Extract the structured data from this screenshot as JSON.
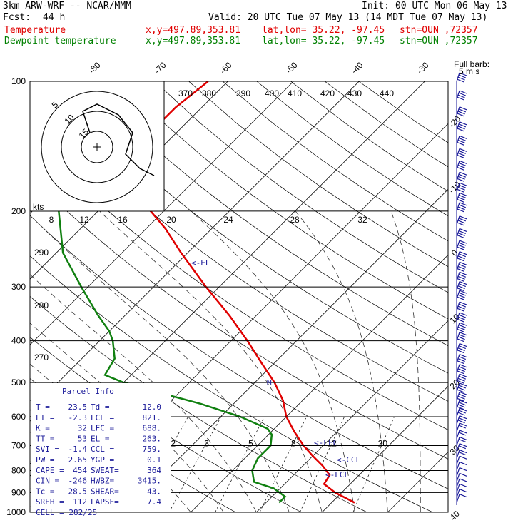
{
  "header": {
    "model": "3km ARW-WRF -- NCAR/MMM",
    "init": "Init: 00 UTC Mon 06 May 13",
    "fcst_label": "Fcst:",
    "fcst_value": "44 h",
    "valid": "Valid: 20 UTC Tue 07 May 13 (14 MDT Tue 07 May 13)",
    "temp_label": "Temperature",
    "dew_label": "Dewpoint temperature",
    "xy": "x,y=497.89,353.81",
    "latlon": "lat,lon= 35.22, -97.45",
    "stn": "stn=OUN ,72357"
  },
  "colors": {
    "temperature": "#e00000",
    "dewpoint": "#108010",
    "info": "#1a1a99",
    "grid": "#000000"
  },
  "chart_data": {
    "type": "line",
    "title": "",
    "y_axis": {
      "scale": "log",
      "ylim": [
        1000,
        100
      ],
      "ticks": [
        100,
        200,
        300,
        400,
        500,
        600,
        700,
        800,
        900,
        1000
      ]
    },
    "isotherm_labels": [
      -80,
      -70,
      -60,
      -50,
      -40,
      -30,
      -20,
      -10,
      0,
      10,
      20,
      30,
      40
    ],
    "theta_labels": [
      370,
      380,
      390,
      400,
      410,
      420,
      430,
      440
    ],
    "theta_labels_left": [
      290,
      280,
      270
    ],
    "mixing_ratio_labels": [
      "2",
      "3",
      "5",
      "8",
      "12",
      "20"
    ],
    "series": [
      {
        "name": "Temperature",
        "points": [
          [
            950,
            23.5
          ],
          [
            900,
            19
          ],
          [
            860,
            16
          ],
          [
            820,
            15.5
          ],
          [
            780,
            13
          ],
          [
            740,
            10
          ],
          [
            700,
            7
          ],
          [
            650,
            3.5
          ],
          [
            600,
            0
          ],
          [
            550,
            -3
          ],
          [
            500,
            -7
          ],
          [
            450,
            -12
          ],
          [
            400,
            -17.5
          ],
          [
            350,
            -24
          ],
          [
            300,
            -32
          ],
          [
            250,
            -41
          ],
          [
            220,
            -47
          ],
          [
            200,
            -52
          ],
          [
            170,
            -57
          ],
          [
            150,
            -61
          ],
          [
            130,
            -64
          ],
          [
            115,
            -64
          ],
          [
            100,
            -63
          ]
        ]
      },
      {
        "name": "Dewpoint temperature",
        "points": [
          [
            950,
            12
          ],
          [
            920,
            12
          ],
          [
            880,
            9
          ],
          [
            850,
            5
          ],
          [
            800,
            3
          ],
          [
            750,
            2
          ],
          [
            700,
            2
          ],
          [
            660,
            0.5
          ],
          [
            640,
            -1
          ],
          [
            600,
            -7
          ],
          [
            560,
            -15
          ],
          [
            520,
            -25
          ],
          [
            500,
            -30
          ],
          [
            480,
            -34
          ],
          [
            440,
            -35
          ],
          [
            400,
            -38
          ],
          [
            380,
            -40
          ],
          [
            350,
            -44
          ],
          [
            300,
            -51
          ],
          [
            250,
            -59
          ],
          [
            200,
            -66
          ],
          [
            170,
            -70
          ],
          [
            150,
            -72
          ],
          [
            130,
            -71
          ],
          [
            115,
            -73
          ],
          [
            100,
            -73
          ]
        ]
      }
    ],
    "markers": [
      "EL",
      "M",
      "LFC",
      "CCL",
      "LCL"
    ],
    "hodograph": {
      "speed_unit": "kts",
      "ring_labels": [
        "5",
        "10",
        "15"
      ],
      "axis_labels": [
        "8",
        "12",
        "16",
        "20",
        "24",
        "28",
        "32"
      ],
      "points": [
        [
          -1,
          2
        ],
        [
          -2,
          5
        ],
        [
          0,
          6
        ],
        [
          3,
          4.5
        ],
        [
          5,
          2
        ],
        [
          4,
          -1
        ],
        [
          6,
          -3
        ],
        [
          8,
          -4
        ]
      ]
    },
    "wind_barb_legend": {
      "title": "Full barb:",
      "value": "5 m s"
    },
    "wind_barbs": [
      {
        "p": 100,
        "spd": 20,
        "dir": 250
      },
      {
        "p": 110,
        "spd": 20,
        "dir": 250
      },
      {
        "p": 120,
        "spd": 20,
        "dir": 250
      },
      {
        "p": 130,
        "spd": 20,
        "dir": 250
      },
      {
        "p": 140,
        "spd": 20,
        "dir": 250
      },
      {
        "p": 150,
        "spd": 20,
        "dir": 250
      },
      {
        "p": 160,
        "spd": 20,
        "dir": 250
      },
      {
        "p": 170,
        "spd": 20,
        "dir": 250
      },
      {
        "p": 180,
        "spd": 20,
        "dir": 250
      },
      {
        "p": 190,
        "spd": 20,
        "dir": 250
      },
      {
        "p": 200,
        "spd": 20,
        "dir": 250
      },
      {
        "p": 215,
        "spd": 20,
        "dir": 250
      },
      {
        "p": 230,
        "spd": 20,
        "dir": 250
      },
      {
        "p": 245,
        "spd": 20,
        "dir": 250
      },
      {
        "p": 260,
        "spd": 20,
        "dir": 250
      },
      {
        "p": 275,
        "spd": 20,
        "dir": 250
      },
      {
        "p": 290,
        "spd": 20,
        "dir": 250
      },
      {
        "p": 305,
        "spd": 20,
        "dir": 250
      },
      {
        "p": 320,
        "spd": 20,
        "dir": 250
      },
      {
        "p": 340,
        "spd": 20,
        "dir": 250
      },
      {
        "p": 360,
        "spd": 20,
        "dir": 250
      },
      {
        "p": 380,
        "spd": 20,
        "dir": 250
      },
      {
        "p": 400,
        "spd": 20,
        "dir": 250
      },
      {
        "p": 425,
        "spd": 20,
        "dir": 250
      },
      {
        "p": 450,
        "spd": 20,
        "dir": 250
      },
      {
        "p": 475,
        "spd": 20,
        "dir": 250
      },
      {
        "p": 500,
        "spd": 20,
        "dir": 250
      },
      {
        "p": 525,
        "spd": 20,
        "dir": 250
      },
      {
        "p": 550,
        "spd": 20,
        "dir": 250
      },
      {
        "p": 575,
        "spd": 20,
        "dir": 250
      },
      {
        "p": 600,
        "spd": 15,
        "dir": 240
      },
      {
        "p": 625,
        "spd": 15,
        "dir": 240
      },
      {
        "p": 650,
        "spd": 10,
        "dir": 230
      },
      {
        "p": 675,
        "spd": 10,
        "dir": 220
      },
      {
        "p": 700,
        "spd": 10,
        "dir": 220
      },
      {
        "p": 725,
        "spd": 10,
        "dir": 200
      },
      {
        "p": 750,
        "spd": 10,
        "dir": 200
      },
      {
        "p": 775,
        "spd": 5,
        "dir": 190
      },
      {
        "p": 800,
        "spd": 5,
        "dir": 190
      },
      {
        "p": 825,
        "spd": 5,
        "dir": 190
      },
      {
        "p": 850,
        "spd": 5,
        "dir": 190
      },
      {
        "p": 875,
        "spd": 5,
        "dir": 190
      },
      {
        "p": 900,
        "spd": 5,
        "dir": 190
      },
      {
        "p": 925,
        "spd": 5,
        "dir": 190
      },
      {
        "p": 950,
        "spd": 5,
        "dir": 190
      }
    ]
  },
  "parcel_info": {
    "title": "Parcel Info",
    "rows": [
      [
        "T  =",
        "23.5",
        "Td =",
        "12.0"
      ],
      [
        "LI =",
        "-2.3",
        "LCL =",
        "821."
      ],
      [
        "K  =",
        "32",
        "LFC =",
        "688."
      ],
      [
        "TT =",
        "53",
        "EL  =",
        "263."
      ],
      [
        "SVI =",
        "-1.4",
        "CCL =",
        "759."
      ],
      [
        "PW =",
        "2.65",
        "YGP =",
        "0.1"
      ],
      [
        "CAPE =",
        "454",
        "SWEAT=",
        "364"
      ],
      [
        "CIN =",
        "-246",
        "HWBZ=",
        "3415."
      ],
      [
        "Tc =",
        "28.5",
        "SHEAR=",
        "43."
      ],
      [
        "SREH =",
        "112",
        "LAPSE=",
        "7.4"
      ]
    ],
    "cell": "CELL = 282/25"
  }
}
